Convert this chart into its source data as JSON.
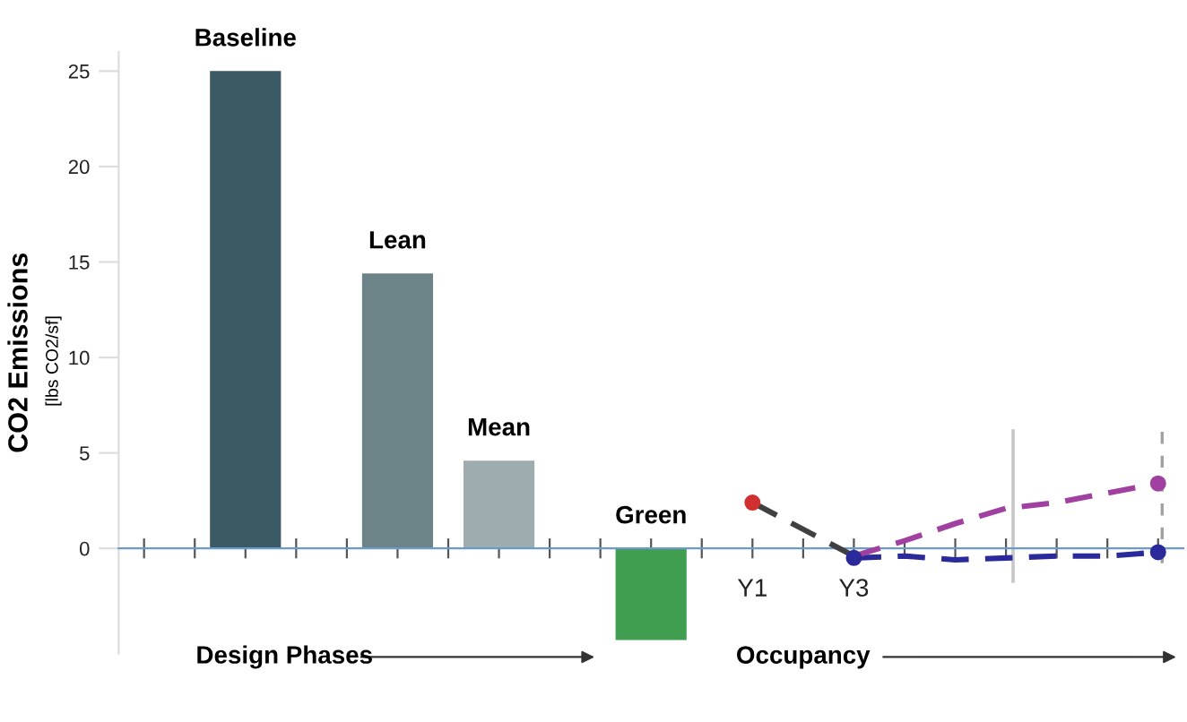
{
  "chart_data": {
    "type": "bar",
    "ylabel": "CO2 Emissions",
    "categories": [
      null,
      null,
      "Baseline",
      null,
      null,
      "Lean",
      null,
      "Mean",
      null,
      null,
      "Green",
      null,
      "Y1",
      null,
      "Y3",
      null,
      null,
      null,
      null,
      null,
      null
    ],
    "values": [
      null,
      null,
      25,
      null,
      null,
      14.4,
      null,
      4.6,
      null,
      null,
      -4.8,
      null,
      null,
      null,
      null,
      null,
      null,
      null,
      null,
      null,
      null
    ],
    "colors": [
      null,
      null,
      "#3b5a64",
      null,
      null,
      "#6c8488",
      null,
      "#9eacb0",
      null,
      null,
      "#3f9e4f",
      null,
      null,
      null,
      null,
      null,
      null,
      null,
      null,
      null,
      null
    ],
    "series": [
      {
        "type": "line",
        "color": "#404040",
        "values": [
          null,
          null,
          null,
          null,
          null,
          null,
          null,
          null,
          null,
          null,
          null,
          null,
          2.4,
          1.0,
          -0.4,
          null,
          null,
          null,
          null,
          null,
          null
        ],
        "line_style": "dashed"
      },
      {
        "type": "scatter",
        "color": "#d03030",
        "values": [
          null,
          null,
          null,
          null,
          null,
          null,
          null,
          null,
          null,
          null,
          null,
          null,
          2.4,
          null,
          null,
          null,
          null,
          null,
          null,
          null,
          null
        ],
        "marker": "circle"
      },
      {
        "type": "line",
        "color": "#2a2a9a",
        "values": [
          null,
          null,
          null,
          null,
          null,
          null,
          null,
          null,
          null,
          null,
          null,
          null,
          null,
          null,
          -0.5,
          -0.4,
          -0.6,
          -0.5,
          -0.4,
          -0.4,
          -0.2
        ],
        "line_style": "dashed"
      },
      {
        "type": "line",
        "color": "#a040a0",
        "values": [
          null,
          null,
          null,
          null,
          null,
          null,
          null,
          null,
          null,
          null,
          null,
          null,
          null,
          null,
          -0.4,
          0.4,
          1.3,
          2.1,
          2.4,
          2.9,
          3.4
        ],
        "line_style": "dashed"
      },
      {
        "type": "scatter",
        "color": "#2a2a9a",
        "values": [
          null,
          null,
          null,
          null,
          null,
          null,
          null,
          null,
          null,
          null,
          null,
          null,
          null,
          null,
          -0.5,
          null,
          null,
          null,
          null,
          null,
          -0.2
        ],
        "marker": "circle"
      },
      {
        "type": "scatter",
        "color": "#a040a0",
        "values": [
          null,
          null,
          null,
          null,
          null,
          null,
          null,
          null,
          null,
          null,
          null,
          null,
          null,
          null,
          null,
          null,
          null,
          null,
          null,
          null,
          3.4
        ],
        "marker": "circle"
      }
    ],
    "ylim": [
      -5.5,
      26
    ],
    "yticks": [
      0,
      5,
      10,
      15,
      20,
      25
    ],
    "annotations": [
      "[lbs CO2/sf]",
      "Design Phases",
      "Occupancy"
    ],
    "grid": false,
    "legend": false
  }
}
